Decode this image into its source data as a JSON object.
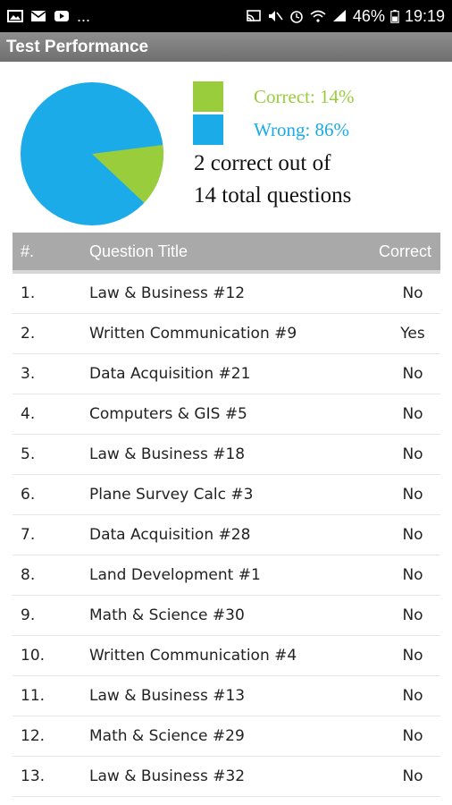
{
  "status_bar": {
    "battery": "46%",
    "time": "19:19",
    "dots": "...",
    "icons_left": [
      "gallery-icon",
      "mail-icon",
      "youtube-icon"
    ],
    "icons_right": [
      "cast-icon",
      "mute-icon",
      "alarm-icon",
      "wifi-icon",
      "signal-icon",
      "battery-icon"
    ]
  },
  "header": {
    "title": "Test Performance"
  },
  "summary": {
    "legend": [
      {
        "label": "Correct: 14%",
        "color": "#9ACD3C"
      },
      {
        "label": "Wrong: 86%",
        "color": "#1AABE8"
      }
    ],
    "line1": "2 correct out of",
    "line2": "14 total questions",
    "pie": {
      "correct_percent": 14,
      "wrong_percent": 86
    }
  },
  "table": {
    "headers": {
      "num": "#.",
      "title": "Question Title",
      "correct": "Correct"
    },
    "rows": [
      {
        "num": "1.",
        "title": "Law & Business #12",
        "correct": "No"
      },
      {
        "num": "2.",
        "title": "Written Communication #9",
        "correct": "Yes"
      },
      {
        "num": "3.",
        "title": "Data Acquisition #21",
        "correct": "No"
      },
      {
        "num": "4.",
        "title": "Computers & GIS #5",
        "correct": "No"
      },
      {
        "num": "5.",
        "title": "Law & Business #18",
        "correct": "No"
      },
      {
        "num": "6.",
        "title": "Plane Survey Calc #3",
        "correct": "No"
      },
      {
        "num": "7.",
        "title": "Data Acquisition #28",
        "correct": "No"
      },
      {
        "num": "8.",
        "title": "Land Development #1",
        "correct": "No"
      },
      {
        "num": "9.",
        "title": "Math & Science #30",
        "correct": "No"
      },
      {
        "num": "10.",
        "title": "Written Communication #4",
        "correct": "No"
      },
      {
        "num": "11.",
        "title": "Law & Business #13",
        "correct": "No"
      },
      {
        "num": "12.",
        "title": "Math & Science #29",
        "correct": "No"
      },
      {
        "num": "13.",
        "title": "Law & Business #32",
        "correct": "No"
      }
    ]
  }
}
